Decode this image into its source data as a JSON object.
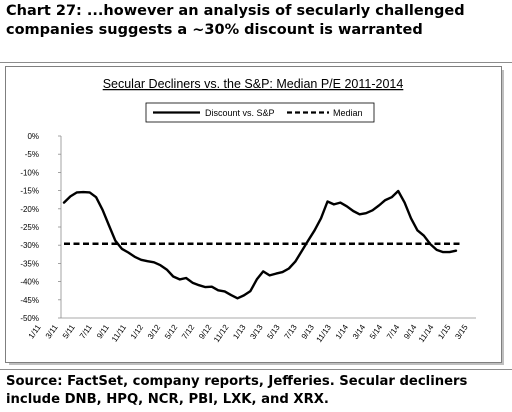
{
  "heading": {
    "line1": "Chart 27: ...however an analysis of secularly challenged",
    "line2": "companies suggests a ~30% discount is warranted"
  },
  "source": {
    "line1": "Source: FactSet, company reports, Jefferies. Secular decliners",
    "line2": "include DNB, HPQ, NCR, PBI, LXK, and XRX."
  },
  "chart_data": {
    "type": "line",
    "title": "Secular Decliners vs. the S&P: Median P/E 2011-2014",
    "xlabel": "",
    "ylabel": "",
    "legend_position": "top",
    "grid": false,
    "ylim": [
      -50,
      0
    ],
    "yticks": [
      0,
      -5,
      -10,
      -15,
      -20,
      -25,
      -30,
      -35,
      -40,
      -45,
      -50
    ],
    "ytick_labels": [
      "0%",
      "-5%",
      "-10%",
      "-15%",
      "-20%",
      "-25%",
      "-30%",
      "-35%",
      "-40%",
      "-45%",
      "-50%"
    ],
    "x_tick_labels": [
      "1/11",
      "3/11",
      "5/11",
      "7/11",
      "9/11",
      "11/11",
      "1/12",
      "3/12",
      "5/12",
      "7/12",
      "9/12",
      "11/12",
      "1/13",
      "3/13",
      "5/13",
      "7/13",
      "9/13",
      "11/13",
      "1/14",
      "3/14",
      "5/14",
      "7/14",
      "9/14",
      "11/14",
      "1/15",
      "3/15"
    ],
    "series": [
      {
        "name": "Discount vs. S&P",
        "style": "solid",
        "color": "#000000",
        "values": [
          -18.3,
          -16.6,
          -15.5,
          -15.4,
          -15.5,
          -16.8,
          -20.3,
          -24.6,
          -28.8,
          -31.0,
          -32.0,
          -33.2,
          -34.0,
          -34.4,
          -34.7,
          -35.5,
          -36.7,
          -38.6,
          -39.4,
          -39.0,
          -40.3,
          -41.0,
          -41.5,
          -41.4,
          -42.4,
          -42.7,
          -43.7,
          -44.6,
          -43.8,
          -42.6,
          -39.4,
          -37.2,
          -38.3,
          -37.8,
          -37.4,
          -36.4,
          -34.5,
          -31.6,
          -28.7,
          -25.9,
          -22.6,
          -18.0,
          -18.8,
          -18.3,
          -19.3,
          -20.6,
          -21.5,
          -21.2,
          -20.4,
          -19.1,
          -17.6,
          -16.8,
          -15.1,
          -18.3,
          -22.6,
          -25.9,
          -27.4,
          -29.7,
          -31.3,
          -31.9,
          -31.9,
          -31.5
        ]
      },
      {
        "name": "Median",
        "style": "dashed",
        "color": "#000000",
        "values": [
          -29.6,
          -29.6
        ]
      }
    ]
  }
}
